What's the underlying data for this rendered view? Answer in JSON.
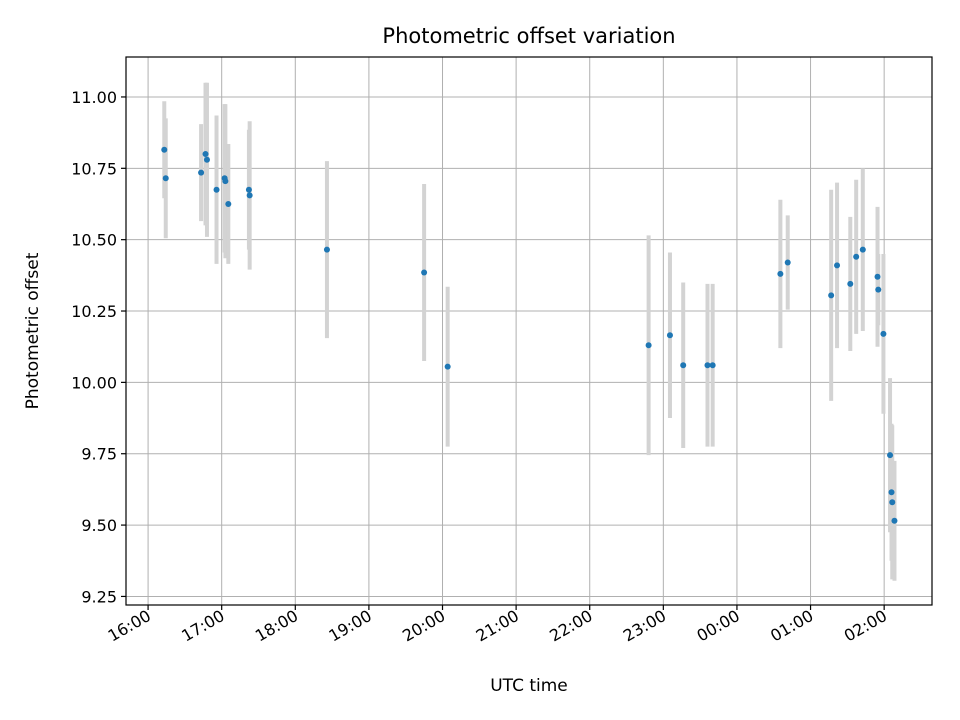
{
  "chart_data": {
    "type": "scatter",
    "title": "Photometric offset variation",
    "xlabel": "UTC time",
    "ylabel": "Photometric offset",
    "x_unit": "hours after 16:00 UTC",
    "xlim": [
      -0.3,
      10.65
    ],
    "ylim": [
      9.22,
      11.14
    ],
    "x_ticks": [
      {
        "value": 0,
        "label": "16:00"
      },
      {
        "value": 1,
        "label": "17:00"
      },
      {
        "value": 2,
        "label": "18:00"
      },
      {
        "value": 3,
        "label": "19:00"
      },
      {
        "value": 4,
        "label": "20:00"
      },
      {
        "value": 5,
        "label": "21:00"
      },
      {
        "value": 6,
        "label": "22:00"
      },
      {
        "value": 7,
        "label": "23:00"
      },
      {
        "value": 8,
        "label": "00:00"
      },
      {
        "value": 9,
        "label": "01:00"
      },
      {
        "value": 10,
        "label": "02:00"
      }
    ],
    "y_ticks": [
      {
        "value": 9.25,
        "label": "9.25"
      },
      {
        "value": 9.5,
        "label": "9.50"
      },
      {
        "value": 9.75,
        "label": "9.75"
      },
      {
        "value": 10.0,
        "label": "10.00"
      },
      {
        "value": 10.25,
        "label": "10.25"
      },
      {
        "value": 10.5,
        "label": "10.50"
      },
      {
        "value": 10.75,
        "label": "10.75"
      },
      {
        "value": 11.0,
        "label": "11.00"
      }
    ],
    "grid": true,
    "point_color": "#1f77b4",
    "errorbar_color": "#d3d3d3",
    "points": [
      {
        "x": 0.22,
        "y": 10.815,
        "err": 0.17
      },
      {
        "x": 0.24,
        "y": 10.715,
        "err": 0.21
      },
      {
        "x": 0.72,
        "y": 10.735,
        "err": 0.17
      },
      {
        "x": 0.78,
        "y": 10.8,
        "err": 0.25
      },
      {
        "x": 0.8,
        "y": 10.78,
        "err": 0.27
      },
      {
        "x": 0.93,
        "y": 10.675,
        "err": 0.26
      },
      {
        "x": 1.04,
        "y": 10.715,
        "err": 0.26
      },
      {
        "x": 1.05,
        "y": 10.705,
        "err": 0.27
      },
      {
        "x": 1.09,
        "y": 10.625,
        "err": 0.21
      },
      {
        "x": 1.37,
        "y": 10.675,
        "err": 0.21
      },
      {
        "x": 1.38,
        "y": 10.655,
        "err": 0.26
      },
      {
        "x": 2.43,
        "y": 10.465,
        "err": 0.31
      },
      {
        "x": 3.75,
        "y": 10.385,
        "err": 0.31
      },
      {
        "x": 4.07,
        "y": 10.055,
        "err": 0.28
      },
      {
        "x": 6.8,
        "y": 10.13,
        "err": 0.385
      },
      {
        "x": 7.09,
        "y": 10.165,
        "err": 0.29
      },
      {
        "x": 7.27,
        "y": 10.06,
        "err": 0.29
      },
      {
        "x": 7.6,
        "y": 10.06,
        "err": 0.285
      },
      {
        "x": 7.67,
        "y": 10.06,
        "err": 0.285
      },
      {
        "x": 8.59,
        "y": 10.38,
        "err": 0.26
      },
      {
        "x": 8.69,
        "y": 10.42,
        "err": 0.165
      },
      {
        "x": 9.28,
        "y": 10.305,
        "err": 0.37
      },
      {
        "x": 9.36,
        "y": 10.41,
        "err": 0.29
      },
      {
        "x": 9.54,
        "y": 10.345,
        "err": 0.235
      },
      {
        "x": 9.62,
        "y": 10.44,
        "err": 0.27
      },
      {
        "x": 9.71,
        "y": 10.465,
        "err": 0.285
      },
      {
        "x": 9.91,
        "y": 10.37,
        "err": 0.245
      },
      {
        "x": 9.92,
        "y": 10.325,
        "err": 0.125
      },
      {
        "x": 9.99,
        "y": 10.17,
        "err": 0.28
      },
      {
        "x": 10.08,
        "y": 9.745,
        "err": 0.27
      },
      {
        "x": 10.1,
        "y": 9.615,
        "err": 0.24
      },
      {
        "x": 10.11,
        "y": 9.58,
        "err": 0.27
      },
      {
        "x": 10.14,
        "y": 9.515,
        "err": 0.21
      }
    ]
  }
}
